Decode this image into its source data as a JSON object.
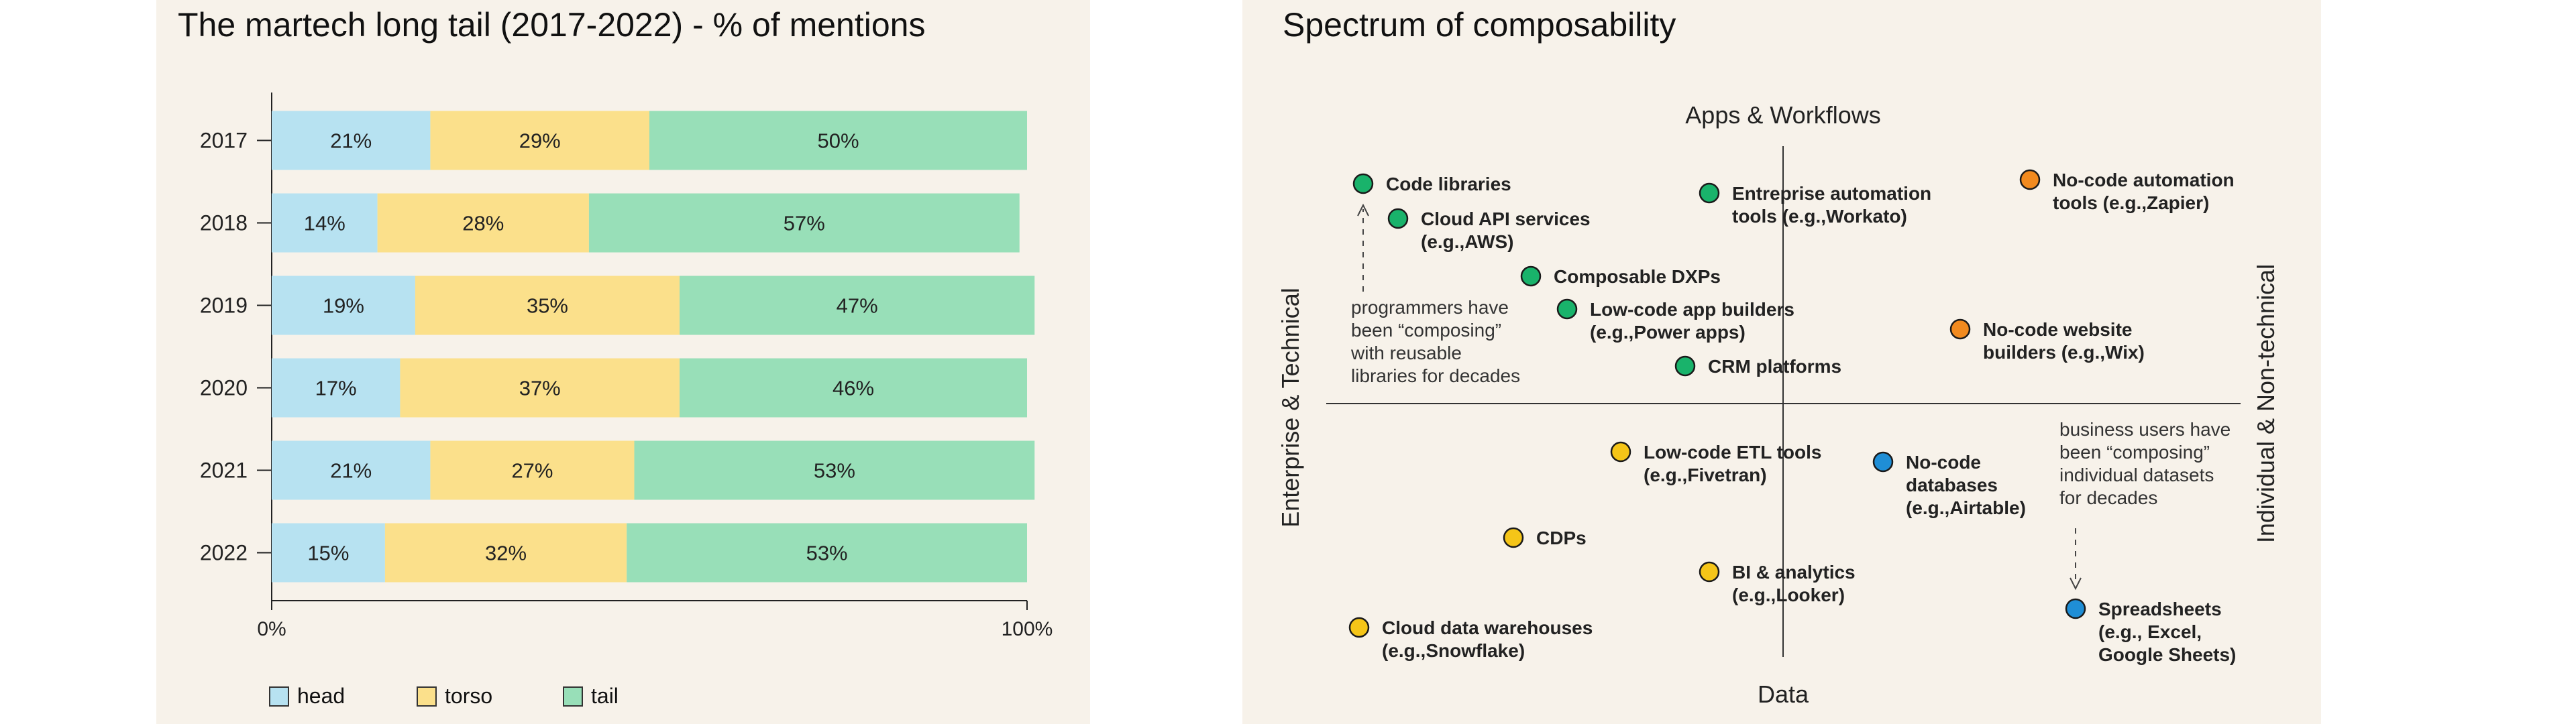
{
  "left_panel": {
    "title": "The martech long tail (2017-2022) - % of mentions"
  },
  "right_panel": {
    "title": "Spectrum of composability"
  },
  "colors": {
    "head": "#b7e2f1",
    "torso": "#fbe08b",
    "tail": "#98dfb8"
  },
  "chart_data": [
    {
      "type": "bar",
      "orientation": "horizontal",
      "stacked": true,
      "title": "The martech long tail (2017-2022) - % of mentions",
      "categories": [
        "2017",
        "2018",
        "2019",
        "2020",
        "2021",
        "2022"
      ],
      "series": [
        {
          "name": "head",
          "values": [
            21,
            14,
            19,
            17,
            21,
            15
          ],
          "labels": [
            "21%",
            "14%",
            "19%",
            "17%",
            "21%",
            "15%"
          ]
        },
        {
          "name": "torso",
          "values": [
            29,
            28,
            35,
            37,
            27,
            32
          ],
          "labels": [
            "29%",
            "28%",
            "35%",
            "37%",
            "27%",
            "32%"
          ]
        },
        {
          "name": "tail",
          "values": [
            50,
            57,
            47,
            46,
            53,
            53
          ],
          "labels": [
            "50%",
            "57%",
            "47%",
            "46%",
            "53%",
            "53%"
          ]
        }
      ],
      "xlim": [
        0,
        100
      ],
      "xticks": [
        "0%",
        "100%"
      ],
      "legend": "bottom-left"
    },
    {
      "type": "scatter",
      "title": "Spectrum of composability",
      "axes": {
        "top": "Apps & Workflows",
        "bottom": "Data",
        "left": "Enterprise & Technical",
        "right": "Individual & Non-technical"
      },
      "points": [
        {
          "lines": [
            "Code libraries"
          ],
          "color": "#19b36b"
        },
        {
          "lines": [
            "Cloud API services",
            "(e.g.,AWS)"
          ],
          "color": "#19b36b"
        },
        {
          "lines": [
            "Composable DXPs"
          ],
          "color": "#19b36b"
        },
        {
          "lines": [
            "Low-code app builders",
            "(e.g.,Power apps)"
          ],
          "color": "#19b36b"
        },
        {
          "lines": [
            "CRM platforms"
          ],
          "color": "#19b36b"
        },
        {
          "lines": [
            "Entreprise automation",
            "tools (e.g.,Workato)"
          ],
          "color": "#19b36b"
        },
        {
          "lines": [
            "No-code automation",
            "tools (e.g.,Zapier)"
          ],
          "color": "#f18a1f"
        },
        {
          "lines": [
            "No-code website",
            "builders (e.g.,Wix)"
          ],
          "color": "#f18a1f"
        },
        {
          "lines": [
            "Low-code ETL tools",
            "(e.g.,Fivetran)"
          ],
          "color": "#f5c518"
        },
        {
          "lines": [
            "No-code",
            "databases",
            "(e.g.,Airtable)"
          ],
          "color": "#1f8ed6"
        },
        {
          "lines": [
            "CDPs"
          ],
          "color": "#f5c518"
        },
        {
          "lines": [
            "BI & analytics",
            "(e.g.,Looker)"
          ],
          "color": "#f5c518"
        },
        {
          "lines": [
            "Cloud data warehouses",
            "(e.g.,Snowflake)"
          ],
          "color": "#f5c518"
        },
        {
          "lines": [
            "Spreadsheets",
            "(e.g., Excel,",
            "Google Sheets)"
          ],
          "color": "#1f8ed6"
        }
      ],
      "annotations": [
        {
          "lines": [
            "programmers have",
            "been “composing”",
            "with reusable",
            "libraries for decades"
          ]
        },
        {
          "lines": [
            "business users have",
            "been “composing”",
            "individual datasets",
            "for decades"
          ]
        }
      ]
    }
  ]
}
